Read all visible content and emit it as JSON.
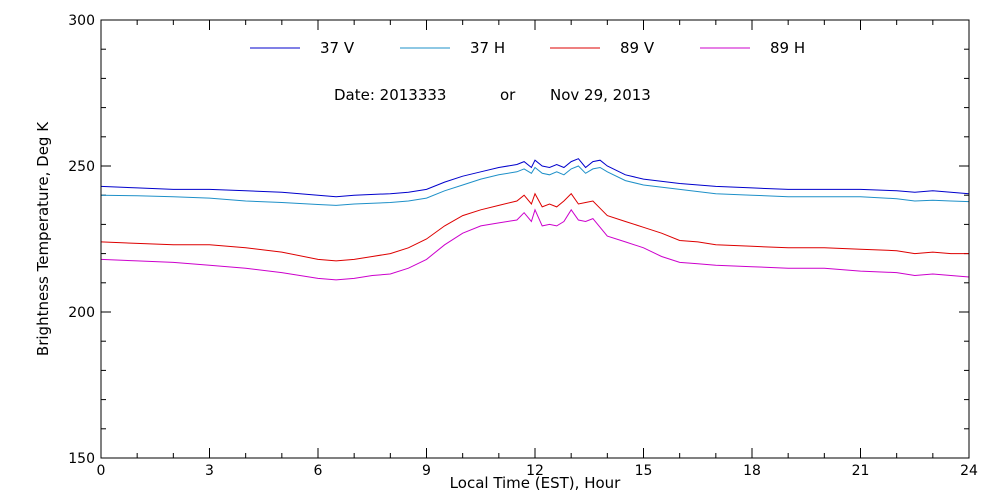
{
  "chart_data": {
    "type": "line",
    "title": "",
    "annotation": {
      "date_label": "Date: 2013333",
      "or_label": "or",
      "date_text": "Nov 29, 2013"
    },
    "xlabel": "Local Time (EST), Hour",
    "ylabel": "Brightness Temperature, Deg K",
    "xlim": [
      0,
      24
    ],
    "ylim": [
      150,
      300
    ],
    "x_major_ticks": [
      0,
      3,
      6,
      9,
      12,
      15,
      18,
      21,
      24
    ],
    "x_tick_labels": [
      "0",
      "3",
      "6",
      "9",
      "12",
      "15",
      "18",
      "21",
      "24"
    ],
    "x_minor_step": 1,
    "y_major_ticks": [
      150,
      200,
      250,
      300
    ],
    "y_tick_labels": [
      "150",
      "200",
      "250",
      "300"
    ],
    "y_minor_step": 10,
    "grid": false,
    "legend_placement": "top",
    "series": [
      {
        "name": "37 V",
        "color": "#0000cc",
        "x": [
          0,
          1,
          2,
          3,
          4,
          5,
          6,
          6.5,
          7,
          8,
          8.5,
          9,
          9.5,
          10,
          10.5,
          11,
          11.5,
          11.7,
          11.9,
          12,
          12.2,
          12.4,
          12.6,
          12.8,
          13,
          13.2,
          13.4,
          13.6,
          13.8,
          14,
          14.5,
          15,
          16,
          17,
          18,
          19,
          20,
          21,
          22,
          22.5,
          23,
          23.5,
          24
        ],
        "values": [
          243,
          242.5,
          242,
          242,
          241.5,
          241,
          240,
          239.5,
          240,
          240.5,
          241,
          242,
          244.5,
          246.5,
          248,
          249.5,
          250.5,
          251.5,
          249.5,
          252,
          250,
          249.5,
          250.5,
          249.5,
          251.5,
          252.5,
          249.5,
          251.5,
          252,
          250,
          247,
          245.5,
          244,
          243,
          242.5,
          242,
          242,
          242,
          241.5,
          241,
          241.5,
          241,
          240.5
        ]
      },
      {
        "name": "37 H",
        "color": "#1e90c8",
        "x": [
          0,
          1,
          2,
          3,
          4,
          5,
          6,
          6.5,
          7,
          8,
          8.5,
          9,
          9.5,
          10,
          10.5,
          11,
          11.5,
          11.7,
          11.9,
          12,
          12.2,
          12.4,
          12.6,
          12.8,
          13,
          13.2,
          13.4,
          13.6,
          13.8,
          14,
          14.5,
          15,
          16,
          17,
          18,
          19,
          20,
          21,
          22,
          22.5,
          23,
          23.5,
          24
        ],
        "values": [
          240,
          239.8,
          239.5,
          239,
          238,
          237.5,
          236.8,
          236.5,
          237,
          237.5,
          238,
          239,
          241.5,
          243.5,
          245.5,
          247,
          248,
          249,
          247.5,
          249.5,
          247.5,
          247,
          248,
          247,
          249,
          250,
          247.5,
          249,
          249.5,
          248,
          245,
          243.5,
          242,
          240.5,
          240,
          239.5,
          239.5,
          239.5,
          238.8,
          238,
          238.3,
          238,
          237.8
        ]
      },
      {
        "name": "89 V",
        "color": "#dd0000",
        "x": [
          0,
          1,
          2,
          3,
          4,
          5,
          6,
          6.5,
          7,
          7.5,
          8,
          8.5,
          9,
          9.5,
          10,
          10.5,
          11,
          11.5,
          11.7,
          11.9,
          12,
          12.2,
          12.4,
          12.6,
          12.8,
          13,
          13.2,
          13.4,
          13.6,
          13.8,
          14,
          14.5,
          15,
          15.5,
          16,
          16.5,
          17,
          18,
          19,
          20,
          21,
          22,
          22.5,
          23,
          23.5,
          24
        ],
        "values": [
          224,
          223.5,
          223,
          223,
          222,
          220.5,
          218,
          217.5,
          218,
          219,
          220,
          222,
          225,
          229.5,
          233,
          235,
          236.5,
          238,
          240,
          237,
          240.5,
          236,
          237,
          236,
          238,
          240.5,
          237,
          237.5,
          238,
          235.5,
          233,
          231,
          229,
          227,
          224.5,
          224,
          223,
          222.5,
          222,
          222,
          221.5,
          221,
          220,
          220.5,
          220,
          220
        ]
      },
      {
        "name": "89 H",
        "color": "#cc00cc",
        "x": [
          0,
          1,
          2,
          3,
          4,
          5,
          6,
          6.5,
          7,
          7.5,
          8,
          8.5,
          9,
          9.5,
          10,
          10.5,
          11,
          11.5,
          11.7,
          11.9,
          12,
          12.2,
          12.4,
          12.6,
          12.8,
          13,
          13.2,
          13.4,
          13.6,
          13.8,
          14,
          14.5,
          15,
          15.5,
          16,
          16.5,
          17,
          18,
          19,
          20,
          21,
          22,
          22.5,
          23,
          23.5,
          24
        ],
        "values": [
          218,
          217.5,
          217,
          216,
          215,
          213.5,
          211.5,
          211,
          211.5,
          212.5,
          213,
          215,
          218,
          223,
          227,
          229.5,
          230.5,
          231.5,
          234,
          231,
          235,
          229.5,
          230,
          229.5,
          231,
          235,
          231.5,
          231,
          232,
          229,
          226,
          224,
          222,
          219,
          217,
          216.5,
          216,
          215.5,
          215,
          215,
          214,
          213.5,
          212.5,
          213,
          212.5,
          212
        ]
      }
    ]
  }
}
